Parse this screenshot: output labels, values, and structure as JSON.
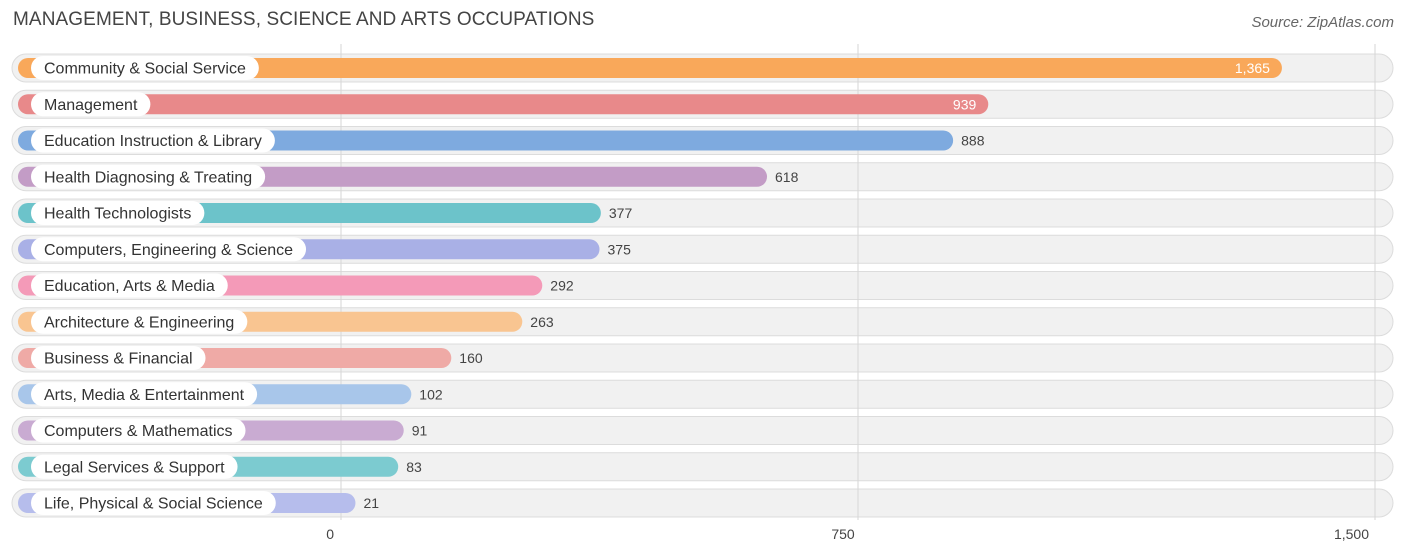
{
  "header": {
    "title": "MANAGEMENT, BUSINESS, SCIENCE AND ARTS OCCUPATIONS",
    "source": "Source: ZipAtlas.com"
  },
  "chart_data": {
    "type": "bar",
    "orientation": "horizontal",
    "title": "MANAGEMENT, BUSINESS, SCIENCE AND ARTS OCCUPATIONS",
    "xlim": [
      0,
      1500
    ],
    "x_ticks": [
      0,
      750,
      1500
    ],
    "x_tick_labels": [
      "0",
      "750",
      "1,500"
    ],
    "grid": true,
    "categories": [
      "Community & Social Service",
      "Management",
      "Education Instruction & Library",
      "Health Diagnosing & Treating",
      "Health Technologists",
      "Computers, Engineering & Science",
      "Education, Arts & Media",
      "Architecture & Engineering",
      "Business & Financial",
      "Arts, Media & Entertainment",
      "Computers & Mathematics",
      "Legal Services & Support",
      "Life, Physical & Social Science"
    ],
    "values": [
      1365,
      939,
      888,
      618,
      377,
      375,
      292,
      263,
      160,
      102,
      91,
      83,
      21
    ],
    "value_labels": [
      "1,365",
      "939",
      "888",
      "618",
      "377",
      "375",
      "292",
      "263",
      "160",
      "102",
      "91",
      "83",
      "21"
    ],
    "colors": [
      "#f9a85a",
      "#e8898a",
      "#7eaadf",
      "#c39cc6",
      "#6cc3ca",
      "#a9b0e6",
      "#f49ab8",
      "#f9c591",
      "#efaaa6",
      "#a8c6ea",
      "#c9abd2",
      "#7ccbd0",
      "#b6bdec"
    ]
  }
}
